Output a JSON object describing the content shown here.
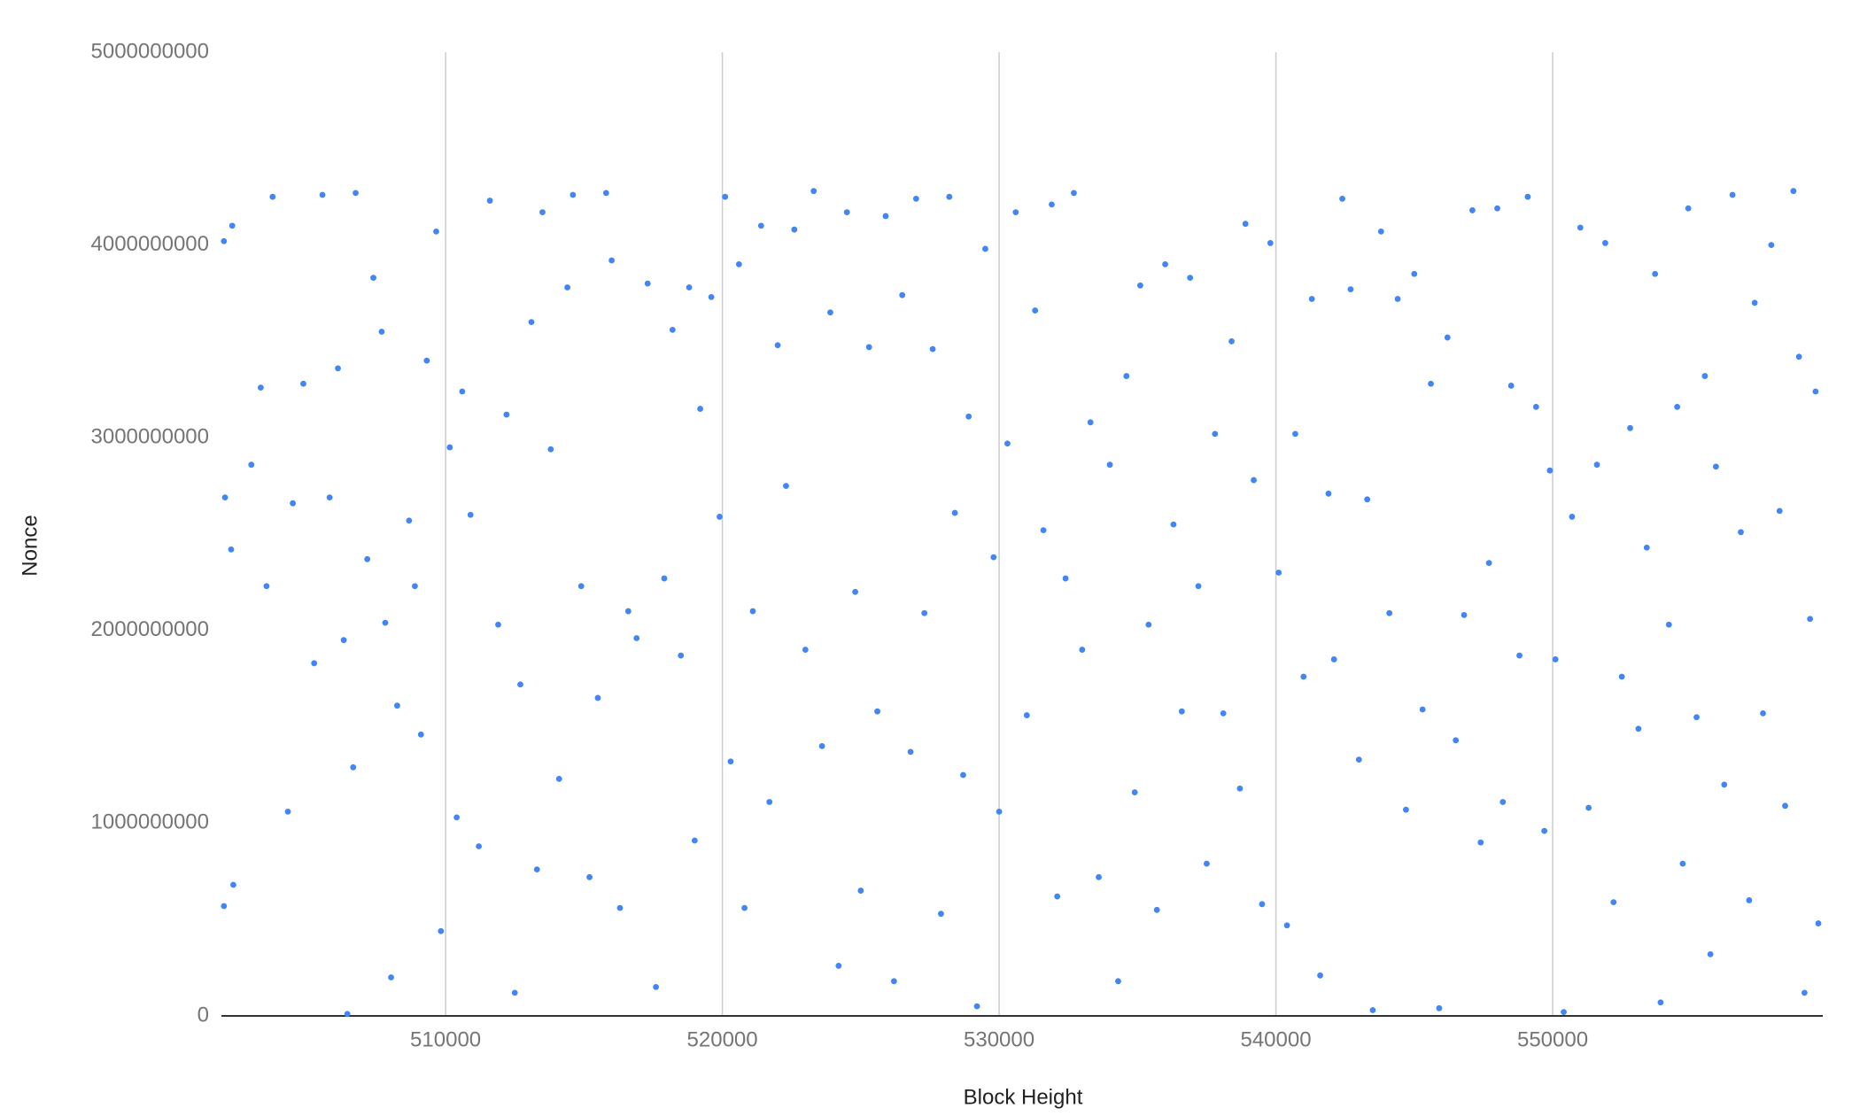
{
  "chart_data": {
    "type": "scatter",
    "x_label": "Block Height",
    "y_label": "Nonce",
    "color": "#4285f4",
    "xlim": [
      501900,
      559760
    ],
    "ylim": [
      0,
      5000000000
    ],
    "xticks": [
      510000,
      520000,
      530000,
      540000,
      550000
    ],
    "yticks": [
      0,
      1000000000,
      2000000000,
      3000000000,
      4000000000,
      5000000000
    ],
    "grid": "x",
    "x": [
      501990,
      502290,
      502030,
      502250,
      501990,
      502330,
      502980,
      503320,
      503750,
      504300,
      503530,
      504480,
      504860,
      505250,
      505550,
      505810,
      506110,
      506320,
      506450,
      506660,
      506750,
      507170,
      507390,
      507690,
      507820,
      508030,
      508250,
      508680,
      508890,
      509110,
      509320,
      509660,
      509830,
      510150,
      510400,
      510600,
      510900,
      511200,
      511600,
      511900,
      512200,
      512500,
      512700,
      513100,
      513300,
      513500,
      513800,
      514100,
      514400,
      514600,
      514900,
      515200,
      515500,
      515800,
      516000,
      516300,
      516600,
      516900,
      517300,
      517600,
      517900,
      518200,
      518500,
      518800,
      519000,
      519200,
      519600,
      519900,
      520100,
      520300,
      520600,
      520800,
      521100,
      521400,
      521700,
      522000,
      522300,
      522600,
      523000,
      523300,
      523600,
      523900,
      524200,
      524500,
      524800,
      525000,
      525300,
      525600,
      525900,
      526200,
      526500,
      526800,
      527000,
      527300,
      527600,
      527900,
      528200,
      528400,
      528700,
      528900,
      529200,
      529500,
      529800,
      530000,
      530300,
      530600,
      531000,
      531300,
      531600,
      531900,
      532100,
      532400,
      532700,
      533000,
      533300,
      533600,
      534000,
      534300,
      534600,
      534900,
      535100,
      535400,
      535700,
      536000,
      536300,
      536600,
      536900,
      537200,
      537500,
      537800,
      538100,
      538400,
      538700,
      538900,
      539200,
      539500,
      539800,
      540100,
      540400,
      540700,
      541000,
      541300,
      541600,
      541900,
      542100,
      542400,
      542700,
      543000,
      543300,
      543500,
      543800,
      544100,
      544400,
      544700,
      545000,
      545300,
      545600,
      545900,
      546200,
      546500,
      546800,
      547100,
      547400,
      547700,
      548000,
      548200,
      548500,
      548800,
      549100,
      549400,
      549700,
      549900,
      550100,
      550400,
      550700,
      551000,
      551300,
      551600,
      551900,
      552200,
      552500,
      552800,
      553100,
      553400,
      553700,
      553900,
      554200,
      554500,
      554700,
      554900,
      555200,
      555500,
      555700,
      555900,
      556200,
      556500,
      556800,
      557100,
      557300,
      557600,
      557900,
      558200,
      558400,
      558700,
      558900,
      559100,
      559300,
      559500,
      559600
    ],
    "y": [
      4020000000,
      4100000000,
      2690000000,
      2420000000,
      570000000,
      680000000,
      2860000000,
      3260000000,
      4250000000,
      1060000000,
      2230000000,
      2660000000,
      3280000000,
      1830000000,
      4260000000,
      2690000000,
      3360000000,
      1950000000,
      10000000,
      1290000000,
      4270000000,
      2370000000,
      3830000000,
      3550000000,
      2040000000,
      200000000,
      1610000000,
      2570000000,
      2230000000,
      1460000000,
      3400000000,
      4070000000,
      440000000,
      2950000000,
      1030000000,
      3240000000,
      2600000000,
      880000000,
      4230000000,
      2030000000,
      3120000000,
      120000000,
      1720000000,
      3600000000,
      760000000,
      4170000000,
      2940000000,
      1230000000,
      3780000000,
      4260000000,
      2230000000,
      720000000,
      1650000000,
      4270000000,
      3920000000,
      560000000,
      2100000000,
      1960000000,
      3800000000,
      150000000,
      2270000000,
      3560000000,
      1870000000,
      3780000000,
      910000000,
      3150000000,
      3730000000,
      2590000000,
      4250000000,
      1320000000,
      3900000000,
      560000000,
      2100000000,
      4100000000,
      1110000000,
      3480000000,
      2750000000,
      4080000000,
      1900000000,
      4280000000,
      1400000000,
      3650000000,
      260000000,
      4170000000,
      2200000000,
      650000000,
      3470000000,
      1580000000,
      4150000000,
      180000000,
      3740000000,
      1370000000,
      4240000000,
      2090000000,
      3460000000,
      530000000,
      4250000000,
      2610000000,
      1250000000,
      3110000000,
      50000000,
      3980000000,
      2380000000,
      1060000000,
      2970000000,
      4170000000,
      1560000000,
      3660000000,
      2520000000,
      4210000000,
      620000000,
      2270000000,
      4270000000,
      1900000000,
      3080000000,
      720000000,
      2860000000,
      180000000,
      3320000000,
      1160000000,
      3790000000,
      2030000000,
      550000000,
      3900000000,
      2550000000,
      1580000000,
      3830000000,
      2230000000,
      790000000,
      3020000000,
      1570000000,
      3500000000,
      1180000000,
      4110000000,
      2780000000,
      580000000,
      4010000000,
      2300000000,
      470000000,
      3020000000,
      1760000000,
      3720000000,
      210000000,
      2710000000,
      1850000000,
      4240000000,
      3770000000,
      1330000000,
      2680000000,
      30000000,
      4070000000,
      2090000000,
      3720000000,
      1070000000,
      3850000000,
      1590000000,
      3280000000,
      40000000,
      3520000000,
      1430000000,
      2080000000,
      4180000000,
      900000000,
      2350000000,
      4190000000,
      1110000000,
      3270000000,
      1870000000,
      4250000000,
      3160000000,
      960000000,
      2830000000,
      1850000000,
      20000000,
      2590000000,
      4090000000,
      1080000000,
      2860000000,
      4010000000,
      590000000,
      1760000000,
      3050000000,
      1490000000,
      2430000000,
      3850000000,
      70000000,
      2030000000,
      3160000000,
      790000000,
      4190000000,
      1550000000,
      3320000000,
      320000000,
      2850000000,
      1200000000,
      4260000000,
      2510000000,
      600000000,
      3700000000,
      1570000000,
      4000000000,
      2620000000,
      1090000000,
      4280000000,
      3420000000,
      120000000,
      2060000000,
      3240000000,
      480000000
    ]
  }
}
